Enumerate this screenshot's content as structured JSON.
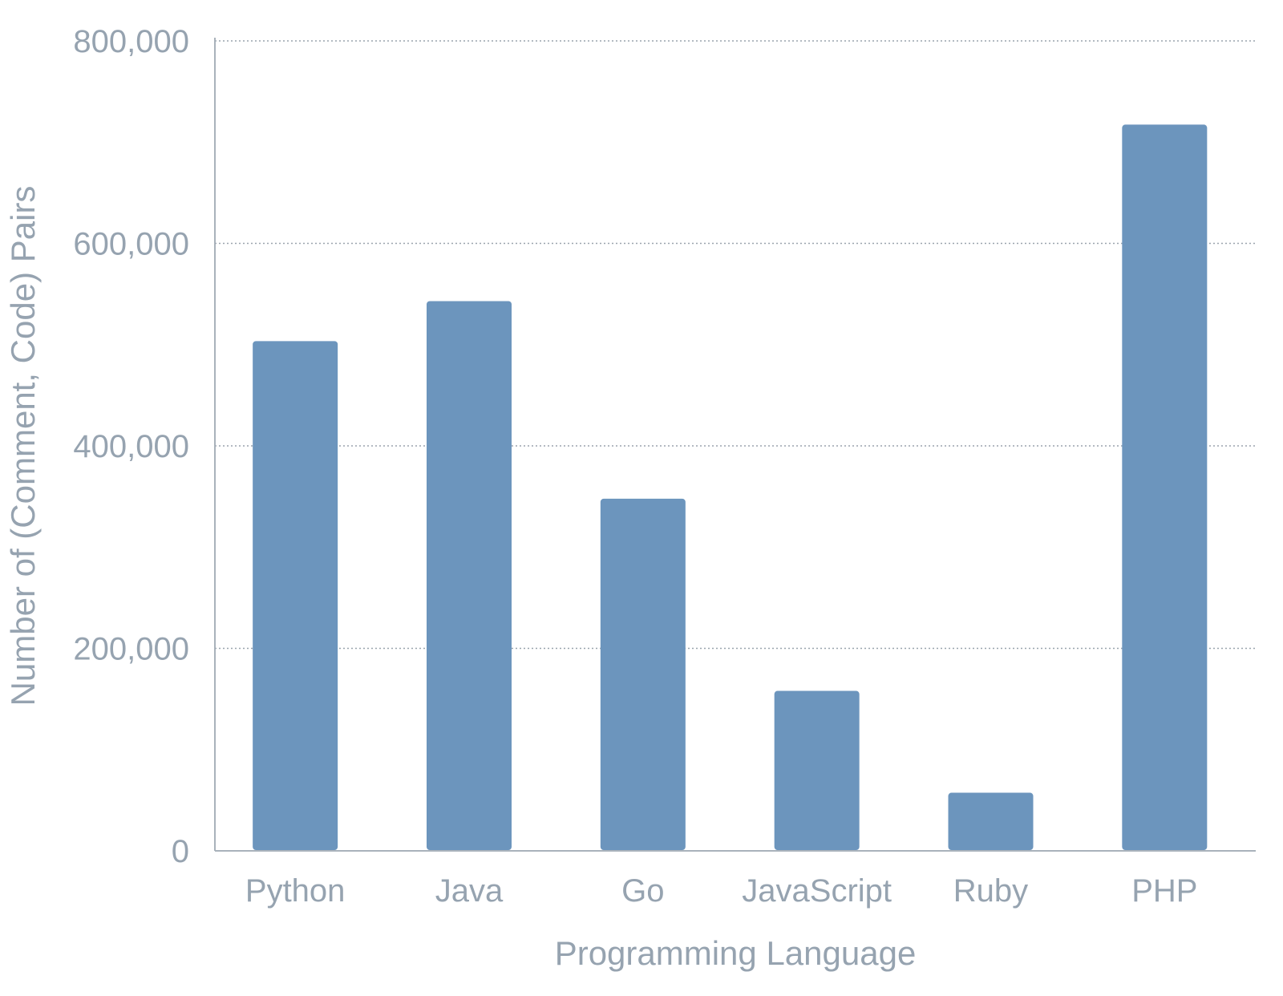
{
  "colors": {
    "bar": "#6c95bd",
    "text": "#96a3b0",
    "axis": "#a9b2bb",
    "grid": "#9aa4ae"
  },
  "chart_data": {
    "type": "bar",
    "title": "",
    "xlabel": "Programming Language",
    "ylabel": "Number of (Comment, Code) Pairs",
    "categories": [
      "Python",
      "Java",
      "Go",
      "JavaScript",
      "Ruby",
      "PHP"
    ],
    "values": [
      503502,
      542991,
      347789,
      157988,
      57393,
      717313
    ],
    "ylim": [
      0,
      800000
    ],
    "yticks": [
      0,
      200000,
      400000,
      600000,
      800000
    ],
    "ytick_labels": [
      "0",
      "200,000",
      "400,000",
      "600,000",
      "800,000"
    ],
    "grid": true,
    "grid_style": "dotted-horizontal",
    "legend": "none"
  }
}
